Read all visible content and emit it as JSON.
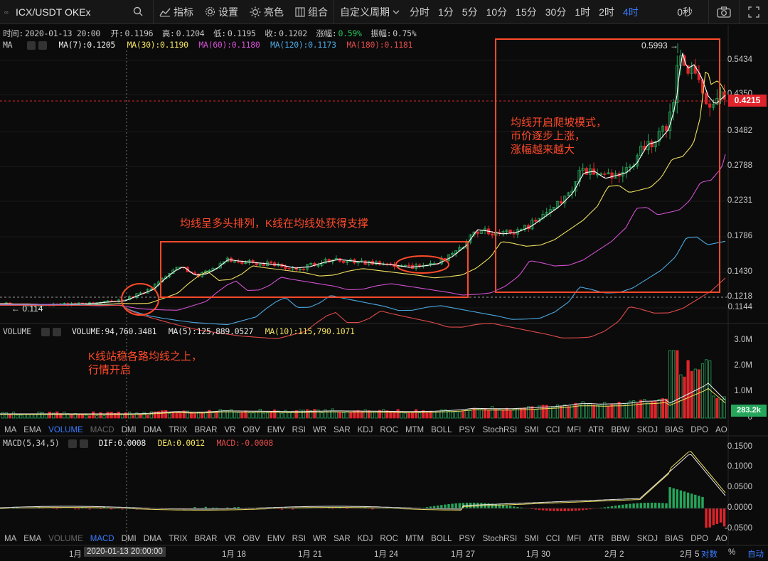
{
  "toolbar": {
    "symbol_ext": "∞",
    "symbol": "ICX/USDT OKEx",
    "indicators_label": "指标",
    "settings_label": "设置",
    "theme_label": "亮色",
    "combo_label": "组合",
    "custom_period_label": "自定义周期",
    "periods": [
      "分时",
      "1分",
      "5分",
      "10分",
      "15分",
      "30分",
      "1时",
      "2时",
      "4时"
    ],
    "active_period": "4时",
    "countdown": "0秒"
  },
  "info": {
    "time_label": "时间:",
    "time": "2020-01-13 20:00",
    "open_label": "开:",
    "open": "0.1196",
    "high_label": "高:",
    "high": "0.1204",
    "low_label": "低:",
    "low": "0.1195",
    "close_label": "收:",
    "close": "0.1202",
    "change_label": "涨幅:",
    "change": "0.59%",
    "amplitude_label": "振幅:",
    "amplitude": "0.75%"
  },
  "ma_legend": {
    "name": "MA",
    "ma7": "MA(7):0.1205",
    "ma30": "MA(30):0.1190",
    "ma60": "MA(60):0.1180",
    "ma120": "MA(120):0.1173",
    "ma180": "MA(180):0.1181"
  },
  "volume_legend": {
    "name": "VOLUME",
    "volume": "VOLUME:94,760.3481",
    "ma5": "MA(5):125,889.0527",
    "ma10": "MA(10):115,790.1071"
  },
  "macd_legend": {
    "name": "MACD(5,34,5)",
    "dif": "DIF:0.0008",
    "dea": "DEA:0.0012",
    "macd": "MACD:-0.0008"
  },
  "price_axis": [
    "0.5434",
    "0.4350",
    "0.3482",
    "0.2788",
    "0.2231",
    "0.1786",
    "0.1430",
    "0.1218",
    "0.1144"
  ],
  "current_price": "0.4215",
  "peak_label": "0.5993",
  "low_label": "0.114",
  "volume_axis": [
    "3.0M",
    "2.0M",
    "1.0M",
    "0"
  ],
  "volume_current": "283.2k",
  "macd_axis": [
    "0.1500",
    "0.1000",
    "0.0500",
    "0.0000",
    "-0.0500"
  ],
  "indicator_tabs": [
    "MA",
    "EMA",
    "VOLUME",
    "MACD",
    "DMI",
    "DMA",
    "TRIX",
    "BRAR",
    "VR",
    "OBV",
    "EMV",
    "RSI",
    "WR",
    "SAR",
    "KDJ",
    "ROC",
    "MTM",
    "BOLL",
    "PSY",
    "StochRSI",
    "SMI",
    "CCI",
    "MFI",
    "ATR",
    "BBW",
    "SKDJ",
    "BIAS",
    "DPO",
    "AO"
  ],
  "time_axis": {
    "labels": [
      "1月",
      "1月 18",
      "1月 21",
      "1月 24",
      "1月 27",
      "1月 30",
      "2月 2",
      "2月 5"
    ],
    "crosshair_time": "2020-01-13 20:00:00",
    "log_label": "对数",
    "percent_label": "%",
    "auto_label": "自动"
  },
  "annotations": {
    "bull_arrangement": "均线呈多头排列，K线在均线处获得支撑",
    "climb_line1": "均线开启爬坡模式，",
    "climb_line2": "币价逐步上涨，",
    "climb_line3": "涨幅越来越大",
    "above_ma_line1": "K线站稳各路均线之上，",
    "above_ma_line2": "行情开启"
  },
  "colors": {
    "up": "#26a65b",
    "down": "#e0242b",
    "ma7": "#ffffff",
    "ma30": "#f0e060",
    "ma60": "#d050d0",
    "ma120": "#4aa8e0",
    "ma180": "#e04a4a",
    "annotation": "#ff4a2a",
    "active": "#3a7bff"
  }
}
